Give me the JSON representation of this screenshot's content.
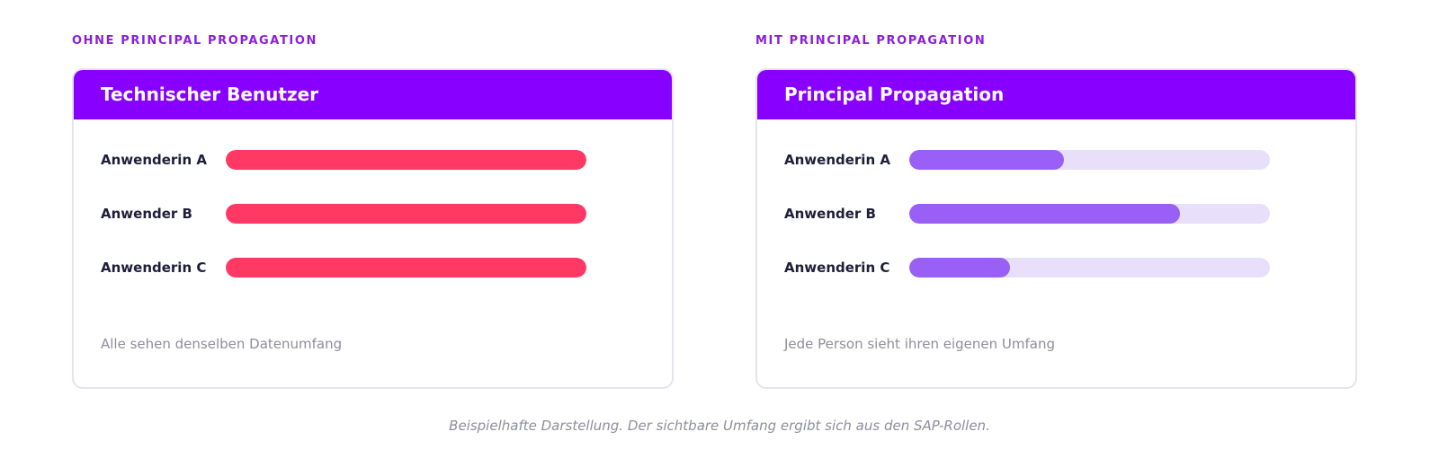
{
  "colors": {
    "accent": "#8800ff",
    "eyebrow": "#8a1fd8",
    "full_bar": "#ff3864",
    "partial_bar": "#9a5ff7",
    "partial_track": "#e8e0fb"
  },
  "left": {
    "eyebrow": "OHNE PRINCIPAL PROPAGATION",
    "title": "Technischer Benutzer",
    "note": "Alle sehen denselben Datenumfang",
    "rows": [
      {
        "label": "Anwenderin A",
        "fraction": 1.0
      },
      {
        "label": "Anwender B",
        "fraction": 1.0
      },
      {
        "label": "Anwenderin C",
        "fraction": 1.0
      }
    ]
  },
  "right": {
    "eyebrow": "MIT PRINCIPAL PROPAGATION",
    "title": "Principal Propagation",
    "note": "Jede Person sieht ihren eigenen Umfang",
    "rows": [
      {
        "label": "Anwenderin A",
        "fraction": 0.43
      },
      {
        "label": "Anwender B",
        "fraction": 0.75
      },
      {
        "label": "Anwenderin C",
        "fraction": 0.28
      }
    ]
  },
  "caption": "Beispielhafte Darstellung. Der sichtbare Umfang ergibt sich aus den SAP-Rollen."
}
